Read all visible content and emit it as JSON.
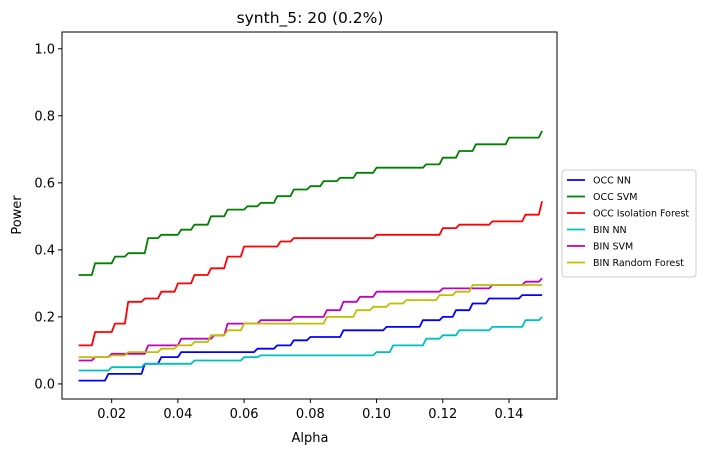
{
  "chart_data": {
    "type": "line",
    "title": "synth_5: 20 (0.2%)",
    "xlabel": "Alpha",
    "ylabel": "Power",
    "xlim": [
      0.005,
      0.1545
    ],
    "ylim": [
      -0.045,
      1.05
    ],
    "x_ticks": [
      0.02,
      0.04,
      0.06,
      0.08,
      0.1,
      0.12,
      0.14
    ],
    "x_tick_labels": [
      "0.02",
      "0.04",
      "0.06",
      "0.08",
      "0.10",
      "0.12",
      "0.14"
    ],
    "y_ticks": [
      0.0,
      0.2,
      0.4,
      0.6,
      0.8,
      1.0
    ],
    "y_tick_labels": [
      "0.0",
      "0.2",
      "0.4",
      "0.6",
      "0.8",
      "1.0"
    ],
    "grid": false,
    "legend_position": "outside-right",
    "series": [
      {
        "name": "OCC NN",
        "color": "#0000ff",
        "points": [
          [
            0.01,
            0.01
          ],
          [
            0.018,
            0.01
          ],
          [
            0.019,
            0.03
          ],
          [
            0.029,
            0.03
          ],
          [
            0.03,
            0.06
          ],
          [
            0.034,
            0.06
          ],
          [
            0.035,
            0.08
          ],
          [
            0.04,
            0.08
          ],
          [
            0.041,
            0.095
          ],
          [
            0.063,
            0.095
          ],
          [
            0.064,
            0.105
          ],
          [
            0.069,
            0.105
          ],
          [
            0.07,
            0.115
          ],
          [
            0.074,
            0.115
          ],
          [
            0.075,
            0.13
          ],
          [
            0.079,
            0.13
          ],
          [
            0.08,
            0.14
          ],
          [
            0.089,
            0.14
          ],
          [
            0.09,
            0.16
          ],
          [
            0.102,
            0.16
          ],
          [
            0.103,
            0.17
          ],
          [
            0.113,
            0.17
          ],
          [
            0.114,
            0.19
          ],
          [
            0.119,
            0.19
          ],
          [
            0.12,
            0.2
          ],
          [
            0.123,
            0.2
          ],
          [
            0.124,
            0.22
          ],
          [
            0.128,
            0.22
          ],
          [
            0.129,
            0.24
          ],
          [
            0.133,
            0.24
          ],
          [
            0.134,
            0.255
          ],
          [
            0.143,
            0.255
          ],
          [
            0.144,
            0.265
          ],
          [
            0.15,
            0.265
          ]
        ]
      },
      {
        "name": "OCC SVM",
        "color": "#008000",
        "points": [
          [
            0.01,
            0.325
          ],
          [
            0.014,
            0.325
          ],
          [
            0.015,
            0.36
          ],
          [
            0.02,
            0.36
          ],
          [
            0.021,
            0.38
          ],
          [
            0.024,
            0.38
          ],
          [
            0.025,
            0.39
          ],
          [
            0.03,
            0.39
          ],
          [
            0.031,
            0.435
          ],
          [
            0.034,
            0.435
          ],
          [
            0.035,
            0.445
          ],
          [
            0.04,
            0.445
          ],
          [
            0.041,
            0.46
          ],
          [
            0.044,
            0.46
          ],
          [
            0.045,
            0.475
          ],
          [
            0.049,
            0.475
          ],
          [
            0.05,
            0.5
          ],
          [
            0.054,
            0.5
          ],
          [
            0.055,
            0.52
          ],
          [
            0.06,
            0.52
          ],
          [
            0.061,
            0.53
          ],
          [
            0.064,
            0.53
          ],
          [
            0.065,
            0.54
          ],
          [
            0.069,
            0.54
          ],
          [
            0.07,
            0.56
          ],
          [
            0.074,
            0.56
          ],
          [
            0.075,
            0.58
          ],
          [
            0.079,
            0.58
          ],
          [
            0.08,
            0.59
          ],
          [
            0.083,
            0.59
          ],
          [
            0.084,
            0.605
          ],
          [
            0.088,
            0.605
          ],
          [
            0.089,
            0.615
          ],
          [
            0.093,
            0.615
          ],
          [
            0.094,
            0.63
          ],
          [
            0.099,
            0.63
          ],
          [
            0.1,
            0.645
          ],
          [
            0.114,
            0.645
          ],
          [
            0.115,
            0.655
          ],
          [
            0.119,
            0.655
          ],
          [
            0.12,
            0.675
          ],
          [
            0.124,
            0.675
          ],
          [
            0.125,
            0.695
          ],
          [
            0.129,
            0.695
          ],
          [
            0.13,
            0.715
          ],
          [
            0.139,
            0.715
          ],
          [
            0.14,
            0.735
          ],
          [
            0.149,
            0.735
          ],
          [
            0.15,
            0.755
          ]
        ]
      },
      {
        "name": "OCC Isolation Forest",
        "color": "#ff0000",
        "points": [
          [
            0.01,
            0.115
          ],
          [
            0.014,
            0.115
          ],
          [
            0.015,
            0.155
          ],
          [
            0.02,
            0.155
          ],
          [
            0.021,
            0.18
          ],
          [
            0.024,
            0.18
          ],
          [
            0.025,
            0.245
          ],
          [
            0.029,
            0.245
          ],
          [
            0.03,
            0.255
          ],
          [
            0.034,
            0.255
          ],
          [
            0.035,
            0.275
          ],
          [
            0.039,
            0.275
          ],
          [
            0.04,
            0.3
          ],
          [
            0.044,
            0.3
          ],
          [
            0.045,
            0.325
          ],
          [
            0.049,
            0.325
          ],
          [
            0.05,
            0.345
          ],
          [
            0.054,
            0.345
          ],
          [
            0.055,
            0.38
          ],
          [
            0.059,
            0.38
          ],
          [
            0.06,
            0.41
          ],
          [
            0.07,
            0.41
          ],
          [
            0.071,
            0.425
          ],
          [
            0.074,
            0.425
          ],
          [
            0.075,
            0.435
          ],
          [
            0.099,
            0.435
          ],
          [
            0.1,
            0.445
          ],
          [
            0.119,
            0.445
          ],
          [
            0.12,
            0.465
          ],
          [
            0.124,
            0.465
          ],
          [
            0.125,
            0.475
          ],
          [
            0.134,
            0.475
          ],
          [
            0.135,
            0.485
          ],
          [
            0.144,
            0.485
          ],
          [
            0.145,
            0.505
          ],
          [
            0.149,
            0.505
          ],
          [
            0.15,
            0.545
          ]
        ]
      },
      {
        "name": "BIN NN",
        "color": "#00bfbf",
        "points": [
          [
            0.01,
            0.04
          ],
          [
            0.019,
            0.04
          ],
          [
            0.02,
            0.05
          ],
          [
            0.029,
            0.05
          ],
          [
            0.03,
            0.06
          ],
          [
            0.044,
            0.06
          ],
          [
            0.045,
            0.07
          ],
          [
            0.059,
            0.07
          ],
          [
            0.06,
            0.08
          ],
          [
            0.064,
            0.08
          ],
          [
            0.065,
            0.085
          ],
          [
            0.099,
            0.085
          ],
          [
            0.1,
            0.095
          ],
          [
            0.104,
            0.095
          ],
          [
            0.105,
            0.115
          ],
          [
            0.114,
            0.115
          ],
          [
            0.115,
            0.135
          ],
          [
            0.119,
            0.135
          ],
          [
            0.12,
            0.145
          ],
          [
            0.124,
            0.145
          ],
          [
            0.125,
            0.16
          ],
          [
            0.134,
            0.16
          ],
          [
            0.135,
            0.17
          ],
          [
            0.144,
            0.17
          ],
          [
            0.145,
            0.19
          ],
          [
            0.149,
            0.19
          ],
          [
            0.15,
            0.2
          ]
        ]
      },
      {
        "name": "BIN SVM",
        "color": "#bf00bf",
        "points": [
          [
            0.01,
            0.07
          ],
          [
            0.014,
            0.07
          ],
          [
            0.015,
            0.08
          ],
          [
            0.019,
            0.08
          ],
          [
            0.02,
            0.09
          ],
          [
            0.03,
            0.09
          ],
          [
            0.031,
            0.115
          ],
          [
            0.04,
            0.115
          ],
          [
            0.041,
            0.135
          ],
          [
            0.05,
            0.135
          ],
          [
            0.051,
            0.145
          ],
          [
            0.054,
            0.145
          ],
          [
            0.055,
            0.18
          ],
          [
            0.064,
            0.18
          ],
          [
            0.065,
            0.19
          ],
          [
            0.074,
            0.19
          ],
          [
            0.075,
            0.2
          ],
          [
            0.084,
            0.2
          ],
          [
            0.085,
            0.22
          ],
          [
            0.089,
            0.22
          ],
          [
            0.09,
            0.245
          ],
          [
            0.094,
            0.245
          ],
          [
            0.095,
            0.26
          ],
          [
            0.099,
            0.26
          ],
          [
            0.1,
            0.275
          ],
          [
            0.119,
            0.275
          ],
          [
            0.12,
            0.285
          ],
          [
            0.134,
            0.285
          ],
          [
            0.135,
            0.295
          ],
          [
            0.144,
            0.295
          ],
          [
            0.145,
            0.305
          ],
          [
            0.149,
            0.305
          ],
          [
            0.15,
            0.315
          ]
        ]
      },
      {
        "name": "BIN Random Forest",
        "color": "#bfbf00",
        "points": [
          [
            0.01,
            0.08
          ],
          [
            0.019,
            0.08
          ],
          [
            0.02,
            0.085
          ],
          [
            0.024,
            0.085
          ],
          [
            0.025,
            0.095
          ],
          [
            0.034,
            0.095
          ],
          [
            0.035,
            0.105
          ],
          [
            0.039,
            0.105
          ],
          [
            0.04,
            0.115
          ],
          [
            0.044,
            0.115
          ],
          [
            0.045,
            0.125
          ],
          [
            0.049,
            0.125
          ],
          [
            0.05,
            0.145
          ],
          [
            0.054,
            0.145
          ],
          [
            0.055,
            0.16
          ],
          [
            0.059,
            0.16
          ],
          [
            0.06,
            0.18
          ],
          [
            0.084,
            0.18
          ],
          [
            0.085,
            0.2
          ],
          [
            0.093,
            0.2
          ],
          [
            0.094,
            0.22
          ],
          [
            0.098,
            0.22
          ],
          [
            0.099,
            0.23
          ],
          [
            0.103,
            0.23
          ],
          [
            0.104,
            0.24
          ],
          [
            0.108,
            0.24
          ],
          [
            0.109,
            0.25
          ],
          [
            0.118,
            0.25
          ],
          [
            0.119,
            0.265
          ],
          [
            0.123,
            0.265
          ],
          [
            0.124,
            0.275
          ],
          [
            0.128,
            0.275
          ],
          [
            0.129,
            0.295
          ],
          [
            0.15,
            0.295
          ]
        ]
      }
    ]
  }
}
